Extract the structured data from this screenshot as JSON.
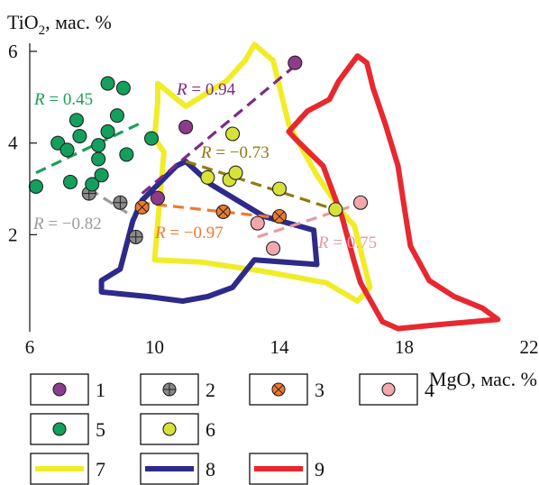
{
  "chart_data": {
    "type": "scatter",
    "axes": {
      "x": {
        "label_prefix": "MgO, мас. %",
        "range": [
          6,
          22
        ],
        "ticks": [
          "6",
          "10",
          "14",
          "18",
          "22"
        ]
      },
      "y": {
        "label_prefix": "TiO",
        "label_sub": "2",
        "label_suffix": ", мас. %",
        "range": [
          0,
          6
        ],
        "ticks": [
          "2",
          "4",
          "6"
        ]
      }
    },
    "grid": false,
    "series": [
      {
        "id": "1",
        "marker": "plain",
        "color": "#8e3b8c",
        "points": [
          [
            10.1,
            2.8
          ],
          [
            11.0,
            4.35
          ],
          [
            14.5,
            5.75
          ]
        ]
      },
      {
        "id": "2",
        "marker": "plus",
        "color": "#8a8a8a",
        "points": [
          [
            7.9,
            2.9
          ],
          [
            8.9,
            2.7
          ],
          [
            9.4,
            1.95
          ]
        ]
      },
      {
        "id": "3",
        "marker": "cross",
        "color": "#ee7a2f",
        "points": [
          [
            9.6,
            2.6
          ],
          [
            12.2,
            2.5
          ],
          [
            14.0,
            2.4
          ]
        ]
      },
      {
        "id": "4",
        "marker": "plain",
        "color": "#f2a8ad",
        "points": [
          [
            13.3,
            2.25
          ],
          [
            13.8,
            1.7
          ],
          [
            16.6,
            2.7
          ]
        ]
      },
      {
        "id": "5",
        "marker": "plain",
        "color": "#12a05c",
        "points": [
          [
            6.2,
            3.05
          ],
          [
            6.9,
            4.0
          ],
          [
            7.2,
            3.85
          ],
          [
            7.3,
            3.15
          ],
          [
            7.5,
            4.5
          ],
          [
            7.6,
            4.15
          ],
          [
            8.0,
            3.1
          ],
          [
            8.2,
            3.65
          ],
          [
            8.2,
            3.95
          ],
          [
            8.3,
            3.3
          ],
          [
            8.5,
            4.25
          ],
          [
            8.5,
            5.3
          ],
          [
            8.8,
            4.6
          ],
          [
            9.0,
            5.2
          ],
          [
            9.1,
            3.75
          ],
          [
            9.9,
            4.1
          ]
        ]
      },
      {
        "id": "6",
        "marker": "plain",
        "color": "#d6e23a",
        "points": [
          [
            11.7,
            3.25
          ],
          [
            12.4,
            3.2
          ],
          [
            12.5,
            4.2
          ],
          [
            12.6,
            3.35
          ],
          [
            14.0,
            3.0
          ],
          [
            15.8,
            2.55
          ]
        ]
      }
    ],
    "trend_lines": [
      {
        "label": "R = 0.45",
        "color": "#1d9e5a",
        "from": [
          6.2,
          3.35
        ],
        "to": [
          9.6,
          4.45
        ]
      },
      {
        "label": "R = 0.94",
        "color": "#7a2b86",
        "from": [
          9.6,
          2.9
        ],
        "to": [
          14.7,
          5.8
        ]
      },
      {
        "label": "R = −0.73",
        "color": "#8e7c10",
        "from": [
          11.0,
          3.6
        ],
        "to": [
          16.0,
          2.5
        ]
      },
      {
        "label": "R = −0.82",
        "color": "#9c9c9c",
        "from": [
          7.9,
          3.0
        ],
        "to": [
          9.3,
          2.4
        ]
      },
      {
        "label": "R = −0.97",
        "color": "#ee7a2f",
        "from": [
          9.5,
          2.7
        ],
        "to": [
          14.2,
          2.35
        ]
      },
      {
        "label": "R = 0.75",
        "color": "#e99aa1",
        "from": [
          13.3,
          1.95
        ],
        "to": [
          16.9,
          2.75
        ]
      }
    ],
    "fields": [
      {
        "id": "7",
        "color": "#f1ec28",
        "points": [
          [
            10.1,
            5.3
          ],
          [
            10.1,
            4.9
          ],
          [
            10.0,
            4.1
          ],
          [
            10.3,
            3.8
          ],
          [
            10.0,
            1.45
          ],
          [
            11.5,
            1.4
          ],
          [
            13.5,
            1.2
          ],
          [
            15.5,
            0.95
          ],
          [
            16.5,
            0.55
          ],
          [
            16.9,
            0.85
          ],
          [
            16.4,
            2.2
          ],
          [
            16.0,
            2.5
          ],
          [
            15.2,
            3.3
          ],
          [
            14.3,
            4.4
          ],
          [
            13.8,
            5.8
          ],
          [
            13.2,
            6.15
          ],
          [
            12.9,
            5.8
          ],
          [
            12.3,
            5.35
          ],
          [
            11.7,
            5.1
          ],
          [
            11.0,
            4.8
          ],
          [
            10.1,
            5.3
          ]
        ]
      },
      {
        "id": "8",
        "color": "#2e2a8b",
        "points": [
          [
            8.9,
            1.25
          ],
          [
            9.3,
            2.3
          ],
          [
            9.6,
            2.75
          ],
          [
            10.7,
            3.5
          ],
          [
            11.0,
            3.6
          ],
          [
            11.8,
            3.1
          ],
          [
            13.5,
            2.4
          ],
          [
            15.1,
            2.1
          ],
          [
            15.2,
            1.35
          ],
          [
            13.2,
            1.45
          ],
          [
            12.5,
            0.85
          ],
          [
            11.7,
            0.65
          ],
          [
            10.9,
            0.55
          ],
          [
            9.8,
            0.65
          ],
          [
            8.3,
            0.75
          ],
          [
            8.3,
            1.0
          ],
          [
            8.9,
            1.25
          ]
        ]
      },
      {
        "id": "9",
        "color": "#e8282f",
        "points": [
          [
            16.5,
            5.9
          ],
          [
            16.8,
            5.75
          ],
          [
            17.0,
            5.2
          ],
          [
            17.4,
            4.4
          ],
          [
            17.8,
            3.5
          ],
          [
            18.0,
            2.6
          ],
          [
            18.2,
            1.75
          ],
          [
            18.8,
            1.0
          ],
          [
            19.6,
            0.65
          ],
          [
            20.5,
            0.4
          ],
          [
            21.0,
            0.15
          ],
          [
            19.3,
            0.05
          ],
          [
            17.8,
            -0.05
          ],
          [
            17.3,
            0.1
          ],
          [
            16.6,
            0.95
          ],
          [
            16.4,
            1.4
          ],
          [
            16.0,
            2.4
          ],
          [
            15.4,
            3.5
          ],
          [
            14.5,
            4.1
          ],
          [
            14.3,
            4.25
          ],
          [
            14.9,
            4.7
          ],
          [
            15.6,
            4.95
          ],
          [
            15.9,
            5.35
          ],
          [
            16.5,
            5.9
          ]
        ]
      }
    ],
    "legend": {
      "placement": "bottom",
      "items": [
        {
          "id": "1",
          "label": "1",
          "kind": "marker",
          "series": "1"
        },
        {
          "id": "2",
          "label": "2",
          "kind": "marker",
          "series": "2"
        },
        {
          "id": "3",
          "label": "3",
          "kind": "marker",
          "series": "3"
        },
        {
          "id": "4",
          "label": "4",
          "kind": "marker",
          "series": "4"
        },
        {
          "id": "5",
          "label": "5",
          "kind": "marker",
          "series": "5"
        },
        {
          "id": "6",
          "label": "6",
          "kind": "marker",
          "series": "6"
        },
        {
          "id": "7",
          "label": "7",
          "kind": "line",
          "color": "#f1ec28"
        },
        {
          "id": "8",
          "label": "8",
          "kind": "line",
          "color": "#2e2a8b"
        },
        {
          "id": "9",
          "label": "9",
          "kind": "line",
          "color": "#e8282f"
        }
      ]
    }
  }
}
